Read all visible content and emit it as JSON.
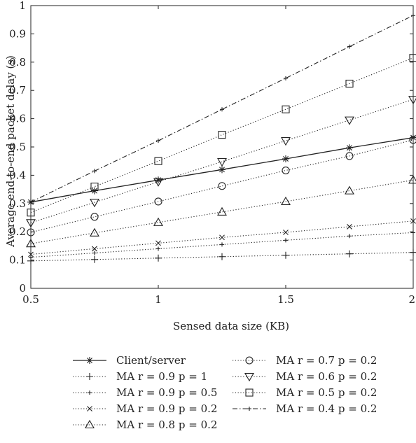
{
  "chart_data": {
    "type": "line",
    "title": "",
    "xlabel": "Sensed data size (KB)",
    "ylabel": "Average end-to-end packet delay (s)",
    "xlim": [
      0.5,
      2
    ],
    "ylim": [
      0,
      1
    ],
    "xticks": [
      "0.5",
      "1",
      "1.5",
      "2"
    ],
    "yticks": [
      "0",
      "0.1",
      "0.2",
      "0.3",
      "0.4",
      "0.5",
      "0.6",
      "0.7",
      "0.8",
      "0.9",
      "1"
    ],
    "grid": false,
    "legend_position": "bottom",
    "x": [
      0.5,
      0.75,
      1.0,
      1.25,
      1.5,
      1.75,
      2.0
    ],
    "series": [
      {
        "name": "Client/server",
        "style": "solid",
        "marker": "star",
        "values": [
          0.305,
          0.345,
          0.383,
          0.42,
          0.458,
          0.497,
          0.533
        ]
      },
      {
        "name": "MA r = 0.9 p = 1",
        "style": "dotted",
        "marker": "plus",
        "values": [
          0.097,
          0.102,
          0.107,
          0.112,
          0.117,
          0.122,
          0.127
        ]
      },
      {
        "name": "MA r = 0.9 p = 0.5",
        "style": "dotted",
        "marker": "small-plus",
        "values": [
          0.11,
          0.125,
          0.14,
          0.155,
          0.17,
          0.185,
          0.197
        ]
      },
      {
        "name": "MA r = 0.9 p = 0.2",
        "style": "dotted",
        "marker": "cross",
        "values": [
          0.12,
          0.14,
          0.16,
          0.18,
          0.198,
          0.218,
          0.238
        ]
      },
      {
        "name": "MA r = 0.8 p = 0.2",
        "style": "dotted",
        "marker": "triangle-up",
        "values": [
          0.158,
          0.196,
          0.233,
          0.27,
          0.307,
          0.345,
          0.383
        ]
      },
      {
        "name": "MA r = 0.7 p = 0.2",
        "style": "dotted",
        "marker": "circle",
        "values": [
          0.198,
          0.253,
          0.307,
          0.362,
          0.417,
          0.468,
          0.525
        ]
      },
      {
        "name": "MA r = 0.6 p = 0.2",
        "style": "dotted",
        "marker": "triangle-down",
        "values": [
          0.232,
          0.304,
          0.377,
          0.448,
          0.522,
          0.595,
          0.668
        ]
      },
      {
        "name": "MA r = 0.5 p = 0.2",
        "style": "dotted",
        "marker": "square",
        "values": [
          0.268,
          0.36,
          0.45,
          0.543,
          0.633,
          0.724,
          0.815
        ]
      },
      {
        "name": "MA r = 0.4 p = 0.2",
        "style": "dashdot",
        "marker": "small-plus",
        "values": [
          0.305,
          0.415,
          0.522,
          0.633,
          0.743,
          0.855,
          0.965
        ]
      }
    ],
    "legend_columns": [
      [
        "Client/server",
        "MA r = 0.9 p = 1",
        "MA r = 0.9 p = 0.5",
        "MA r = 0.9 p = 0.2",
        "MA r = 0.8 p = 0.2"
      ],
      [
        "MA r = 0.7 p = 0.2",
        "MA r = 0.6 p = 0.2",
        "MA r = 0.5 p = 0.2",
        "MA r = 0.4 p = 0.2"
      ]
    ],
    "colors": {
      "line": "#222222",
      "axis": "#222222",
      "background": "#ffffff"
    }
  }
}
